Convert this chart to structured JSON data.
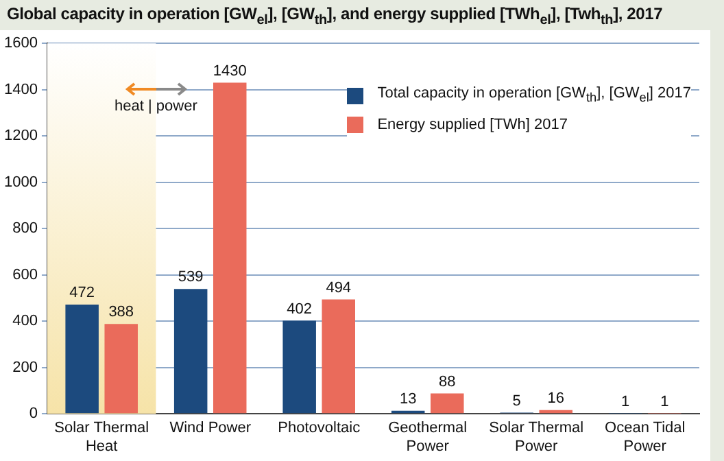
{
  "chart_data": {
    "type": "bar",
    "title": "Global capacity in operation [GW$_{el}$], [GW$_{th}$], and energy supplied [TWh$_{el}$], [Twh$_{th}$], 2017",
    "categories": [
      "Solar Thermal Heat",
      "Wind Power",
      "Photovoltaic",
      "Geothermal Power",
      "Solar Thermal Power",
      "Ocean Tidal Power"
    ],
    "series": [
      {
        "name": "Total capacity in operation [GW$_{th}$], [GW$_{el}$] 2017",
        "color": "#1c4a7e",
        "values": [
          472,
          539,
          402,
          13,
          5,
          1
        ]
      },
      {
        "name": "Energy supplied [TWh] 2017",
        "color": "#ea6b5b",
        "values": [
          388,
          1430,
          494,
          88,
          16,
          1
        ]
      }
    ],
    "ylim": [
      0,
      1600
    ],
    "yticks": [
      0,
      200,
      400,
      600,
      800,
      1000,
      1200,
      1400,
      1600
    ],
    "grid": "y",
    "legend": "top right",
    "data_labels": true,
    "bands": [
      {
        "axis": "x",
        "from": "Solar Thermal Heat",
        "to": "Solar Thermal Heat",
        "color": "#f6e3a8"
      }
    ],
    "annotations": [
      "heat | power"
    ]
  }
}
